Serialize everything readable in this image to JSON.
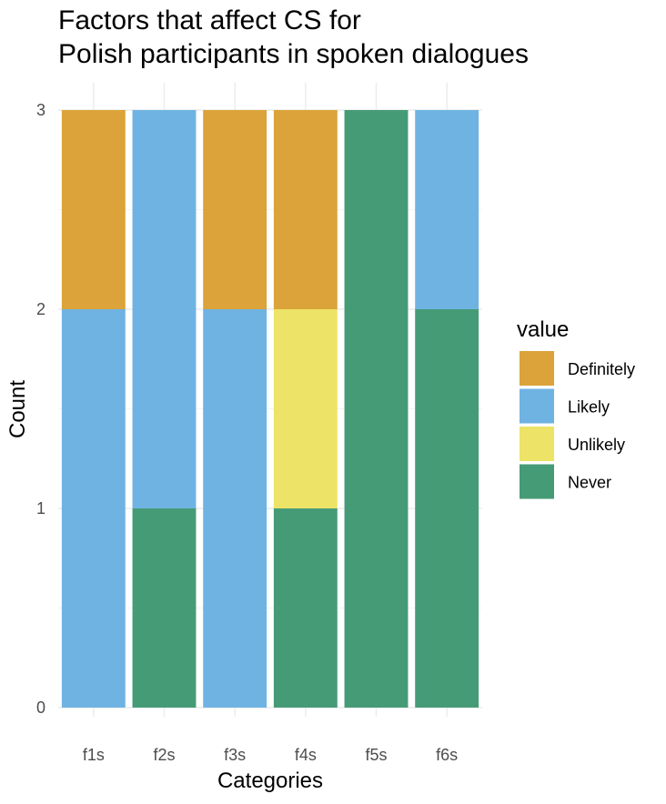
{
  "chart_data": {
    "type": "bar",
    "stacked": true,
    "title_lines": [
      "Factors that affect CS for",
      "Polish participants in spoken dialogues"
    ],
    "xlabel": "Categories",
    "ylabel": "Count",
    "categories": [
      "f1s",
      "f2s",
      "f3s",
      "f4s",
      "f5s",
      "f6s"
    ],
    "ylim": [
      0,
      3
    ],
    "yticks": [
      0,
      1,
      2,
      3
    ],
    "grid": true,
    "legend_title": "value",
    "legend_position": "right",
    "series": [
      {
        "name": "Never",
        "color": "#469b77",
        "values": [
          0,
          1,
          0,
          1,
          3,
          2
        ]
      },
      {
        "name": "Unlikely",
        "color": "#ede366",
        "values": [
          0,
          0,
          0,
          1,
          0,
          0
        ]
      },
      {
        "name": "Likely",
        "color": "#6fb3e2",
        "values": [
          2,
          2,
          2,
          0,
          0,
          1
        ]
      },
      {
        "name": "Definitely",
        "color": "#dba339",
        "values": [
          1,
          0,
          1,
          1,
          0,
          0
        ]
      }
    ],
    "legend_order": [
      "Definitely",
      "Likely",
      "Unlikely",
      "Never"
    ]
  }
}
